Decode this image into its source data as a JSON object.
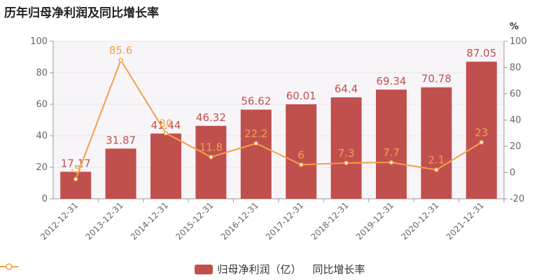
{
  "colors": {
    "bar": "#c0504d",
    "line": "#f2a047",
    "grid": "#e6e6e6",
    "axis": "#999999",
    "text": "#666666"
  },
  "chart_data": {
    "type": "bar",
    "title": "历年归母净利润及同比增长率",
    "categories": [
      "2012-12-31",
      "2013-12-31",
      "2014-12-31",
      "2015-12-31",
      "2016-12-31",
      "2017-12-31",
      "2018-12-31",
      "2019-12-31",
      "2020-12-31",
      "2021-12-31"
    ],
    "series": [
      {
        "name": "归母净利润（亿）",
        "type": "bar",
        "axis": "left",
        "values": [
          17.17,
          31.87,
          41.44,
          46.32,
          56.62,
          60.01,
          64.4,
          69.34,
          70.78,
          87.05
        ],
        "labels": [
          "17.17",
          "31.87",
          "41.44",
          "46.32",
          "56.62",
          "60.01",
          "64.4",
          "69.34",
          "70.78",
          "87.05"
        ]
      },
      {
        "name": "同比增长率",
        "type": "line",
        "axis": "right",
        "values": [
          -5,
          85.6,
          30,
          11.8,
          22.2,
          6,
          7.3,
          7.7,
          2.1,
          23
        ],
        "labels": [
          "-5",
          "85.6",
          "30",
          "11.8",
          "22.2",
          "6",
          "7.3",
          "7.7",
          "2.1",
          "23"
        ]
      }
    ],
    "y_left": {
      "min": 0,
      "max": 100,
      "ticks": [
        "0",
        "20",
        "40",
        "60",
        "80",
        "100"
      ]
    },
    "y_right": {
      "min": -20,
      "max": 100,
      "unit": "%",
      "ticks": [
        "-20",
        "0",
        "20",
        "40",
        "60",
        "80",
        "100"
      ]
    },
    "legend_position": "bottom-center",
    "grid": true
  }
}
